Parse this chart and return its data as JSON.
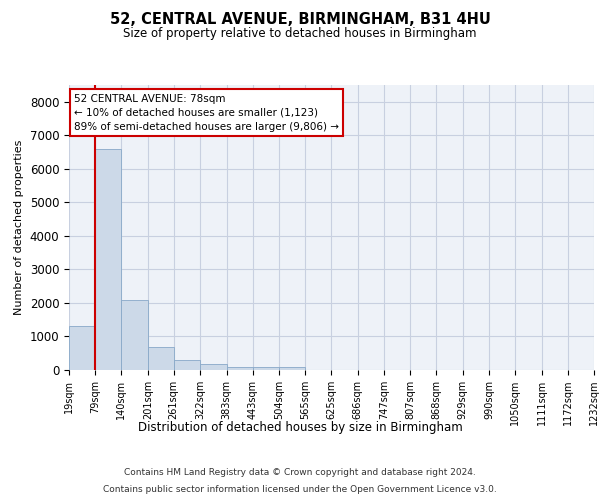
{
  "title1": "52, CENTRAL AVENUE, BIRMINGHAM, B31 4HU",
  "title2": "Size of property relative to detached houses in Birmingham",
  "xlabel": "Distribution of detached houses by size in Birmingham",
  "ylabel": "Number of detached properties",
  "bar_color": "#ccd9e8",
  "bar_edge_color": "#88a8c8",
  "grid_color": "#c8d0e0",
  "annotation_line_color": "#cc0000",
  "annotation_box_color": "#cc0000",
  "property_size": 78,
  "annotation_line1": "52 CENTRAL AVENUE: 78sqm",
  "annotation_line2": "← 10% of detached houses are smaller (1,123)",
  "annotation_line3": "89% of semi-detached houses are larger (9,806) →",
  "footer1": "Contains HM Land Registry data © Crown copyright and database right 2024.",
  "footer2": "Contains public sector information licensed under the Open Government Licence v3.0.",
  "bins": [
    19,
    79,
    140,
    201,
    261,
    322,
    383,
    443,
    504,
    565,
    625,
    686,
    747,
    807,
    868,
    929,
    990,
    1050,
    1111,
    1172,
    1232
  ],
  "counts": [
    1300,
    6580,
    2080,
    700,
    300,
    170,
    100,
    80,
    80,
    0,
    0,
    0,
    0,
    0,
    0,
    0,
    0,
    0,
    0,
    0
  ],
  "ylim": [
    0,
    8500
  ],
  "yticks": [
    0,
    1000,
    2000,
    3000,
    4000,
    5000,
    6000,
    7000,
    8000
  ],
  "background_color": "#eef2f8"
}
